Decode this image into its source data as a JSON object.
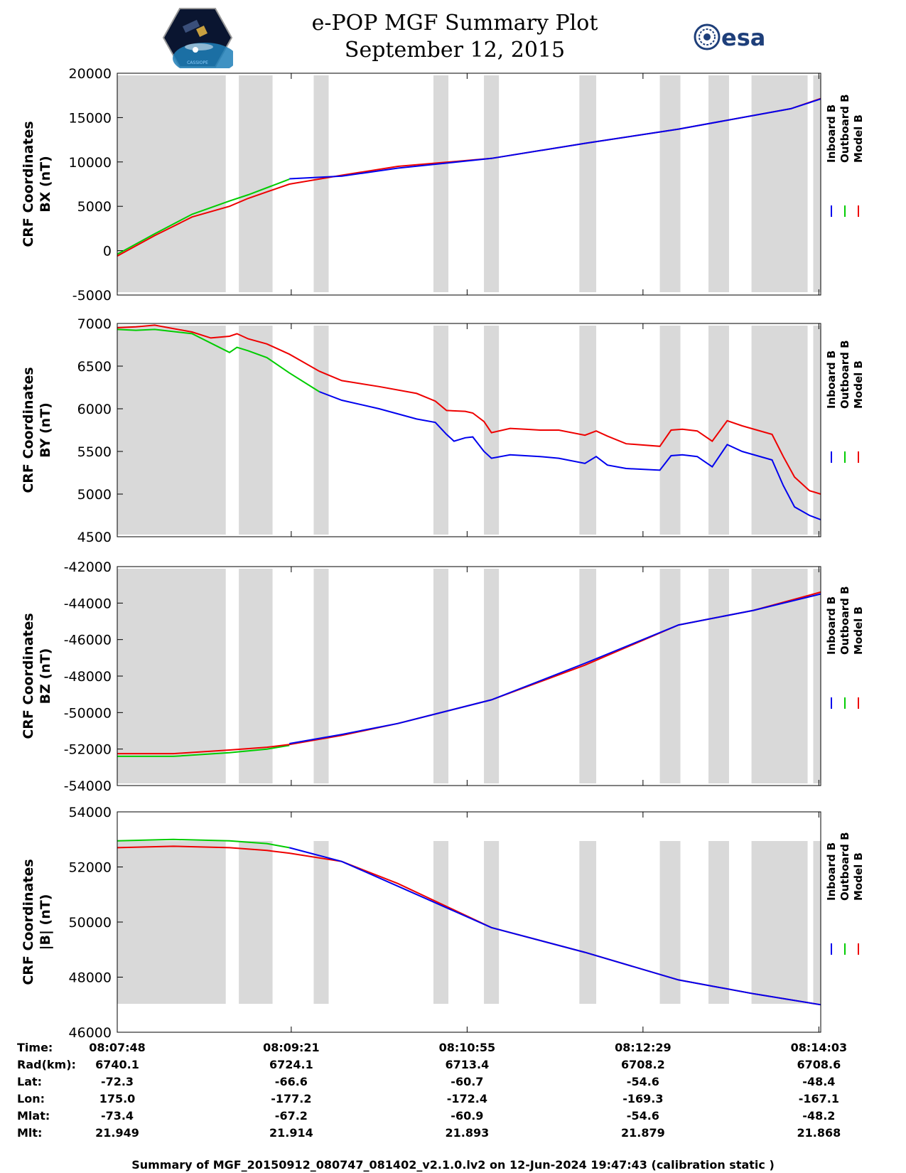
{
  "header": {
    "title": "e-POP MGF Summary Plot",
    "date": "September 12, 2015",
    "left_logo": "cassiope-mission-logo",
    "left_logo_text": "CASSIOPE",
    "right_logo": "esa-logo",
    "right_logo_text": "esa"
  },
  "colors": {
    "inboard": "#0000ee",
    "outboard": "#00cc00",
    "model": "#ee0000",
    "gap_shading": "#d9d9d9"
  },
  "chart_data": [
    {
      "type": "line",
      "title": "",
      "ylabel": [
        "CRF Coordinates",
        "BX (nT)"
      ],
      "ylim": [
        -5000,
        20000
      ],
      "yticks": [
        -5000,
        0,
        5000,
        10000,
        15000,
        20000
      ],
      "legend": [
        "Inboard B",
        "Outboard B",
        "Model B"
      ],
      "x_unit": "seconds since 08:07:48",
      "series": [
        {
          "name": "Inboard B",
          "x": [
            92,
            120,
            150,
            200,
            250,
            300,
            360,
            376
          ],
          "values": [
            8100,
            8400,
            9300,
            10400,
            12100,
            13700,
            16000,
            17100
          ]
        },
        {
          "name": "Outboard B",
          "x": [
            0,
            20,
            40,
            60,
            70,
            92
          ],
          "values": [
            -400,
            1900,
            4100,
            5600,
            6300,
            8050
          ]
        },
        {
          "name": "Model B",
          "x": [
            0,
            20,
            40,
            60,
            70,
            92,
            120,
            150,
            200,
            250,
            300,
            360,
            376
          ],
          "values": [
            -600,
            1700,
            3800,
            5000,
            5900,
            7500,
            8500,
            9500,
            10400,
            12100,
            13700,
            16000,
            17150
          ]
        }
      ]
    },
    {
      "type": "line",
      "title": "",
      "ylabel": [
        "CRF Coordinates",
        "BY (nT)"
      ],
      "ylim": [
        4500,
        7000
      ],
      "yticks": [
        4500,
        5000,
        5500,
        6000,
        6500,
        7000
      ],
      "legend": [
        "Inboard B",
        "Outboard B",
        "Model B"
      ],
      "x_unit": "seconds since 08:07:48",
      "series": [
        {
          "name": "Inboard B",
          "x": [
            108,
            120,
            140,
            160,
            170,
            176,
            180,
            186,
            190,
            196,
            200,
            210,
            218,
            226,
            236,
            250,
            256,
            262,
            272,
            290,
            296,
            302,
            310,
            318,
            326,
            334,
            350,
            356,
            362,
            370,
            376
          ],
          "values": [
            6200,
            6100,
            6000,
            5880,
            5840,
            5700,
            5620,
            5660,
            5670,
            5500,
            5420,
            5460,
            5450,
            5440,
            5420,
            5360,
            5440,
            5340,
            5300,
            5280,
            5450,
            5460,
            5440,
            5320,
            5580,
            5500,
            5400,
            5100,
            4850,
            4750,
            4700
          ]
        },
        {
          "name": "Outboard B",
          "x": [
            0,
            10,
            20,
            40,
            60,
            64,
            70,
            80,
            92,
            108
          ],
          "values": [
            6930,
            6920,
            6930,
            6880,
            6660,
            6720,
            6680,
            6600,
            6420,
            6200
          ]
        },
        {
          "name": "Model B",
          "x": [
            0,
            10,
            20,
            40,
            50,
            60,
            64,
            70,
            80,
            92,
            108,
            120,
            140,
            160,
            170,
            176,
            186,
            190,
            196,
            200,
            210,
            218,
            226,
            236,
            250,
            256,
            262,
            272,
            290,
            296,
            302,
            310,
            318,
            326,
            334,
            350,
            356,
            362,
            370,
            376
          ],
          "values": [
            6950,
            6960,
            6980,
            6900,
            6830,
            6850,
            6880,
            6820,
            6760,
            6640,
            6440,
            6330,
            6260,
            6180,
            6090,
            5980,
            5970,
            5950,
            5850,
            5720,
            5770,
            5760,
            5750,
            5750,
            5690,
            5740,
            5680,
            5590,
            5560,
            5750,
            5760,
            5740,
            5620,
            5860,
            5800,
            5700,
            5440,
            5200,
            5040,
            5000
          ]
        }
      ]
    },
    {
      "type": "line",
      "title": "",
      "ylabel": [
        "CRF Coordinates",
        "BZ (nT)"
      ],
      "ylim": [
        -54000,
        -42000
      ],
      "yticks": [
        -54000,
        -52000,
        -50000,
        -48000,
        -46000,
        -44000,
        -42000
      ],
      "legend": [
        "Inboard B",
        "Outboard B",
        "Model B"
      ],
      "x_unit": "seconds since 08:07:48",
      "series": [
        {
          "name": "Inboard B",
          "x": [
            92,
            120,
            150,
            200,
            250,
            300,
            340,
            376
          ],
          "values": [
            -51700,
            -51200,
            -50600,
            -49300,
            -47300,
            -45200,
            -44400,
            -43500
          ]
        },
        {
          "name": "Outboard B",
          "x": [
            0,
            30,
            60,
            80,
            92
          ],
          "values": [
            -52400,
            -52400,
            -52200,
            -52000,
            -51800
          ]
        },
        {
          "name": "Model B",
          "x": [
            0,
            30,
            60,
            80,
            92,
            120,
            150,
            200,
            250,
            300,
            340,
            376
          ],
          "values": [
            -52250,
            -52250,
            -52050,
            -51900,
            -51750,
            -51250,
            -50600,
            -49300,
            -47400,
            -45200,
            -44400,
            -43400
          ]
        }
      ]
    },
    {
      "type": "line",
      "title": "",
      "ylabel": [
        "CRF Coordinates",
        "|B| (nT)"
      ],
      "ylim": [
        46000,
        54000
      ],
      "yticks": [
        46000,
        48000,
        50000,
        52000,
        54000
      ],
      "legend": [
        "Inboard B",
        "Outboard B",
        "Model B"
      ],
      "x_unit": "seconds since 08:07:48",
      "series": [
        {
          "name": "Inboard B",
          "x": [
            92,
            120,
            150,
            200,
            250,
            300,
            340,
            376
          ],
          "values": [
            52700,
            52200,
            51300,
            49800,
            48900,
            47900,
            47400,
            47000
          ]
        },
        {
          "name": "Outboard B",
          "x": [
            0,
            30,
            60,
            80,
            92
          ],
          "values": [
            52950,
            53000,
            52950,
            52850,
            52700
          ]
        },
        {
          "name": "Model B",
          "x": [
            0,
            30,
            60,
            80,
            92,
            120,
            150,
            200,
            250,
            300,
            340,
            376
          ],
          "values": [
            52700,
            52750,
            52700,
            52600,
            52500,
            52200,
            51400,
            49800,
            48900,
            47900,
            47400,
            47000
          ]
        }
      ]
    }
  ],
  "gap_intervals_seconds": [
    [
      0,
      58
    ],
    [
      65,
      83
    ],
    [
      105,
      113
    ],
    [
      169,
      177
    ],
    [
      196,
      204
    ],
    [
      247,
      256
    ],
    [
      290,
      301
    ],
    [
      316,
      327
    ],
    [
      339,
      369
    ],
    [
      372,
      376
    ]
  ],
  "x_axis": {
    "duration_seconds": 376,
    "ticks_seconds": [
      0,
      93,
      187,
      281,
      375
    ]
  },
  "info_table": {
    "labels": [
      "Time:",
      "Rad(km):",
      "Lat:",
      "Lon:",
      "Mlat:",
      "Mlt:"
    ],
    "columns": [
      [
        "08:07:48",
        "6740.1",
        "-72.3",
        "175.0",
        "-73.4",
        "21.949"
      ],
      [
        "08:09:21",
        "6724.1",
        "-66.6",
        "-177.2",
        "-67.2",
        "21.914"
      ],
      [
        "08:10:55",
        "6713.4",
        "-60.7",
        "-172.4",
        "-60.9",
        "21.893"
      ],
      [
        "08:12:29",
        "6708.2",
        "-54.6",
        "-169.3",
        "-54.6",
        "21.879"
      ],
      [
        "08:14:03",
        "6708.6",
        "-48.4",
        "-167.1",
        "-48.2",
        "21.868"
      ]
    ]
  },
  "footer": "Summary of MGF_20150912_080747_081402_v2.1.0.lv2 on 12-Jun-2024 19:47:43 (calibration static )"
}
